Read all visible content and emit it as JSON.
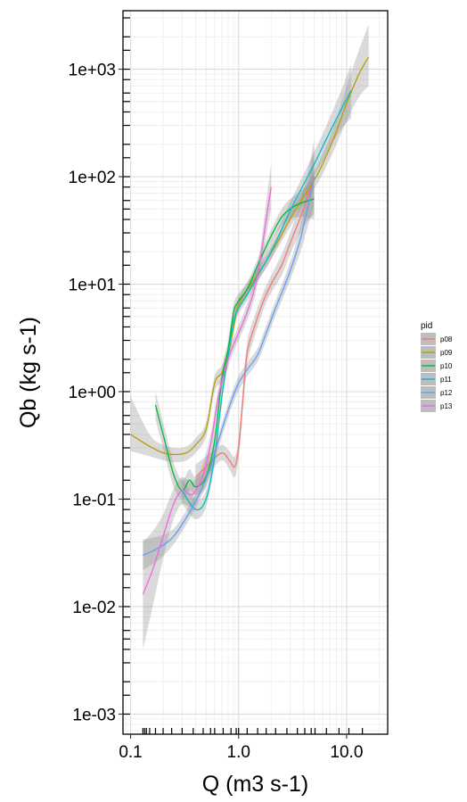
{
  "chart_data": {
    "type": "line",
    "title": "",
    "xlabel": "Q (m3 s-1)",
    "ylabel": "Qb (kg s-1)",
    "x_scale": "log10",
    "y_scale": "log10",
    "xlim": [
      0.085,
      24
    ],
    "ylim": [
      0.00065,
      3500
    ],
    "grid": true,
    "legend_position": "right",
    "x_ticks": [
      {
        "value": 0.1,
        "label": "0.1"
      },
      {
        "value": 1,
        "label": "1.0"
      },
      {
        "value": 10,
        "label": "10.0"
      }
    ],
    "y_ticks": [
      {
        "value": 0.001,
        "label": "1e-03"
      },
      {
        "value": 0.01,
        "label": "1e-02"
      },
      {
        "value": 0.1,
        "label": "1e-01"
      },
      {
        "value": 1,
        "label": "1e+00"
      },
      {
        "value": 10,
        "label": "1e+01"
      },
      {
        "value": 100,
        "label": "1e+02"
      },
      {
        "value": 1000,
        "label": "1e+03"
      }
    ],
    "legend": {
      "title": "pid"
    },
    "series": [
      {
        "name": "p08",
        "color": "#F8766D",
        "x": [
          0.4,
          0.55,
          0.7,
          0.82,
          0.92,
          1.0,
          1.1,
          1.2,
          1.4,
          1.7,
          2.0,
          2.5,
          3.0,
          3.6,
          4.3,
          5.0
        ],
        "y": [
          0.16,
          0.22,
          0.27,
          0.23,
          0.2,
          0.3,
          0.9,
          2.3,
          4.0,
          7.0,
          10.0,
          15.0,
          24.0,
          38.0,
          62.0,
          100.0
        ],
        "band_x": [
          0.4,
          0.55,
          0.7,
          0.82,
          0.92,
          1.0,
          1.1,
          1.2,
          1.4,
          1.7,
          2.0,
          2.5,
          3.0,
          3.6,
          4.3,
          5.0
        ],
        "band_low": [
          0.12,
          0.18,
          0.23,
          0.19,
          0.16,
          0.24,
          0.7,
          1.8,
          3.2,
          5.8,
          8.3,
          12.0,
          19.0,
          28.0,
          38.0,
          45.0
        ],
        "band_high": [
          0.21,
          0.27,
          0.32,
          0.28,
          0.25,
          0.38,
          1.15,
          2.9,
          5.0,
          8.5,
          12.0,
          19.0,
          30.0,
          52.0,
          100.0,
          220.0
        ]
      },
      {
        "name": "p09",
        "color": "#B79F00",
        "x": [
          0.1,
          0.15,
          0.2,
          0.26,
          0.33,
          0.4,
          0.5,
          0.6,
          0.7,
          0.8,
          0.9,
          1.0,
          1.3,
          1.7,
          2.2,
          3.0,
          4.0,
          5.5,
          7.5,
          10.0,
          13.0,
          16.0
        ],
        "y": [
          0.4,
          0.31,
          0.27,
          0.26,
          0.27,
          0.32,
          0.45,
          1.2,
          1.5,
          2.2,
          4.0,
          6.5,
          10.0,
          15.0,
          23.0,
          40.0,
          65.0,
          110.0,
          220.0,
          480.0,
          900.0,
          1300.0
        ],
        "band_x": [
          0.1,
          0.15,
          0.2,
          0.26,
          0.33,
          0.4,
          0.5,
          0.6,
          0.7,
          0.8,
          0.9,
          1.0,
          1.3,
          1.7,
          2.2,
          3.0,
          4.0,
          5.5,
          7.5,
          10.0,
          13.0,
          16.0
        ],
        "band_low": [
          0.28,
          0.25,
          0.23,
          0.22,
          0.23,
          0.27,
          0.38,
          1.0,
          1.25,
          1.9,
          3.5,
          5.6,
          8.8,
          13.0,
          20.0,
          34.0,
          55.0,
          90.0,
          170.0,
          330.0,
          550.0,
          700.0
        ],
        "band_high": [
          0.9,
          0.4,
          0.32,
          0.3,
          0.31,
          0.37,
          0.52,
          1.4,
          1.75,
          2.6,
          4.6,
          7.5,
          11.5,
          17.0,
          26.0,
          46.0,
          76.0,
          135.0,
          280.0,
          700.0,
          1500.0,
          2600.0
        ]
      },
      {
        "name": "p10",
        "color": "#00BA38",
        "x": [
          0.17,
          0.2,
          0.25,
          0.3,
          0.35,
          0.4,
          0.5,
          0.6,
          0.7,
          0.8,
          0.9,
          1.0,
          1.2,
          1.5,
          2.0,
          2.5,
          3.0,
          3.5,
          4.0,
          5.0
        ],
        "y": [
          0.75,
          0.4,
          0.17,
          0.12,
          0.15,
          0.13,
          0.16,
          0.35,
          1.3,
          2.5,
          5.5,
          7.0,
          9.0,
          15.0,
          28.0,
          42.0,
          50.0,
          55.0,
          58.0,
          62.0
        ],
        "band_x": [
          0.17,
          0.2,
          0.25,
          0.3,
          0.35,
          0.4,
          0.5,
          0.6,
          0.7,
          0.8,
          0.9,
          1.0,
          1.2,
          1.5,
          2.0,
          2.5,
          3.0,
          3.5,
          4.0,
          5.0
        ],
        "band_low": [
          0.55,
          0.3,
          0.13,
          0.1,
          0.12,
          0.11,
          0.13,
          0.28,
          1.05,
          2.1,
          4.6,
          6.0,
          7.7,
          13.0,
          24.0,
          35.0,
          40.0,
          42.0,
          42.0,
          40.0
        ],
        "band_high": [
          1.0,
          0.52,
          0.22,
          0.15,
          0.19,
          0.16,
          0.2,
          0.44,
          1.6,
          3.0,
          6.5,
          8.2,
          10.5,
          17.0,
          32.0,
          50.0,
          62.0,
          70.0,
          78.0,
          95.0
        ]
      },
      {
        "name": "p11",
        "color": "#00BFC4",
        "x": [
          0.3,
          0.4,
          0.5,
          0.6,
          0.7,
          0.8,
          0.9,
          1.0,
          1.2,
          1.5,
          2.0,
          3.0,
          4.0,
          5.0,
          6.0,
          7.5,
          9.0,
          11.0
        ],
        "y": [
          0.12,
          0.08,
          0.1,
          0.25,
          0.9,
          2.2,
          4.5,
          6.0,
          8.0,
          12.0,
          20.0,
          48.0,
          85.0,
          130.0,
          190.0,
          300.0,
          430.0,
          630.0
        ],
        "band_x": [
          0.3,
          0.4,
          0.5,
          0.6,
          0.7,
          0.8,
          0.9,
          1.0,
          1.2,
          1.5,
          2.0,
          3.0,
          4.0,
          5.0,
          6.0,
          7.5,
          9.0,
          11.0
        ],
        "band_low": [
          0.09,
          0.065,
          0.085,
          0.21,
          0.78,
          1.9,
          3.9,
          5.3,
          7.0,
          10.5,
          17.0,
          40.0,
          68.0,
          100.0,
          140.0,
          210.0,
          280.0,
          350.0
        ],
        "band_high": [
          0.16,
          0.1,
          0.12,
          0.3,
          1.05,
          2.5,
          5.2,
          6.9,
          9.2,
          14.0,
          24.0,
          58.0,
          105.0,
          170.0,
          250.0,
          420.0,
          650.0,
          1100.0
        ]
      },
      {
        "name": "p12",
        "color": "#619CFF",
        "x": [
          0.13,
          0.18,
          0.25,
          0.35,
          0.45,
          0.55,
          0.65,
          0.75,
          0.85,
          1.0,
          1.2,
          1.5,
          1.8,
          2.2,
          2.7,
          3.2,
          3.8,
          4.5,
          5.0
        ],
        "y": [
          0.03,
          0.035,
          0.045,
          0.075,
          0.12,
          0.2,
          0.35,
          0.55,
          0.8,
          1.2,
          1.6,
          2.2,
          3.5,
          6.0,
          10.0,
          16.0,
          28.0,
          60.0,
          100.0
        ],
        "band_x": [
          0.13,
          0.18,
          0.25,
          0.35,
          0.45,
          0.55,
          0.65,
          0.75,
          0.85,
          1.0,
          1.2,
          1.5,
          1.8,
          2.2,
          2.7,
          3.2,
          3.8,
          4.5,
          5.0
        ],
        "band_low": [
          0.022,
          0.027,
          0.038,
          0.065,
          0.105,
          0.17,
          0.3,
          0.47,
          0.69,
          1.02,
          1.38,
          1.9,
          3.0,
          5.1,
          8.4,
          13.0,
          21.0,
          38.0,
          55.0
        ],
        "band_high": [
          0.042,
          0.045,
          0.053,
          0.087,
          0.138,
          0.23,
          0.4,
          0.63,
          0.92,
          1.4,
          1.85,
          2.55,
          4.1,
          7.0,
          12.0,
          19.5,
          38.0,
          95.0,
          180.0
        ]
      },
      {
        "name": "p13",
        "color": "#F564E3",
        "x": [
          0.13,
          0.16,
          0.2,
          0.25,
          0.3,
          0.37,
          0.45,
          0.55,
          0.65,
          0.75,
          0.85,
          1.0,
          1.2,
          1.4,
          1.6,
          1.8,
          2.0
        ],
        "y": [
          0.013,
          0.022,
          0.045,
          0.09,
          0.12,
          0.11,
          0.15,
          0.32,
          0.9,
          1.6,
          2.4,
          3.5,
          5.5,
          9.0,
          18.0,
          40.0,
          80.0
        ],
        "band_x": [
          0.13,
          0.16,
          0.2,
          0.25,
          0.3,
          0.37,
          0.45,
          0.55,
          0.65,
          0.75,
          0.85,
          1.0,
          1.2,
          1.4,
          1.6,
          1.8,
          2.0
        ],
        "band_low": [
          0.004,
          0.01,
          0.028,
          0.065,
          0.09,
          0.085,
          0.12,
          0.26,
          0.75,
          1.35,
          2.05,
          3.0,
          4.6,
          7.4,
          14.0,
          28.0,
          50.0
        ],
        "band_high": [
          0.04,
          0.05,
          0.072,
          0.125,
          0.16,
          0.145,
          0.19,
          0.4,
          1.08,
          1.9,
          2.8,
          4.1,
          6.6,
          11.0,
          23.0,
          57.0,
          130.0
        ]
      }
    ]
  }
}
